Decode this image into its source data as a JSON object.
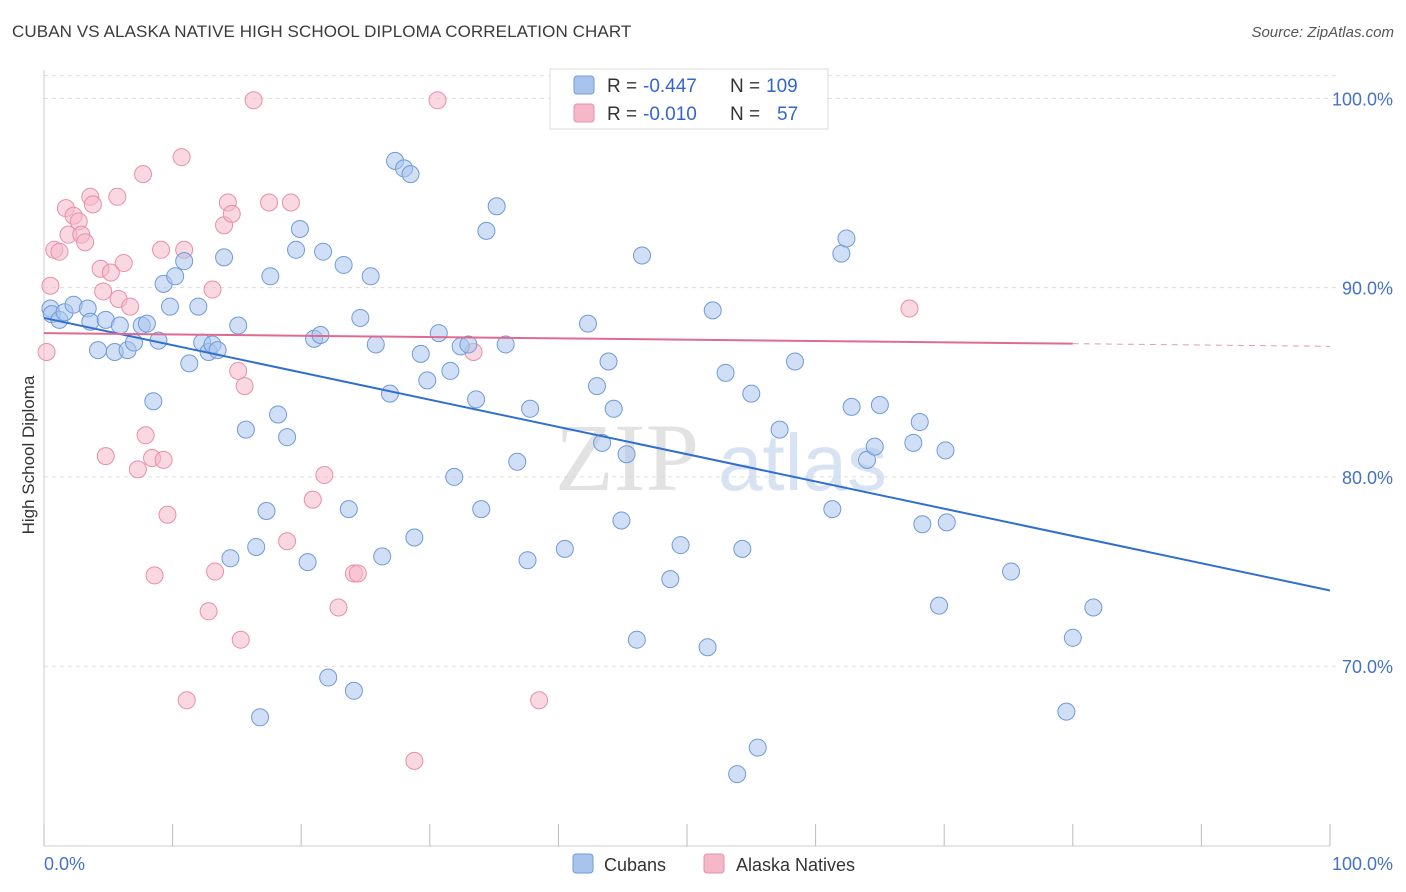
{
  "title": "CUBAN VS ALASKA NATIVE HIGH SCHOOL DIPLOMA CORRELATION CHART",
  "source": "Source: ZipAtlas.com",
  "watermark": {
    "zip": "ZIP",
    "atlas": "atlas"
  },
  "colors": {
    "cubans_fill": "#a9c4ec",
    "cubans_stroke": "#6f9bd8",
    "cubans_line": "#2f6fcf",
    "alaska_fill": "#f5b8c9",
    "alaska_stroke": "#e88fa8",
    "alaska_line": "#e06b92",
    "grid": "#dddddd",
    "tick_text": "#4472c4"
  },
  "legend": {
    "rows": [
      {
        "r_label": "R =",
        "r_value": "-0.447",
        "n_label": "N =",
        "n_value": "109"
      },
      {
        "r_label": "R =",
        "r_value": "-0.010",
        "n_label": "N =",
        "n_value": "57"
      }
    ]
  },
  "bottom_legend": [
    "Cubans",
    "Alaska Natives"
  ],
  "chart_data": {
    "type": "scatter",
    "title": "CUBAN VS ALASKA NATIVE HIGH SCHOOL DIPLOMA CORRELATION CHART",
    "xlabel": "",
    "ylabel": "High School Diploma",
    "xlim": [
      0,
      100
    ],
    "ylim": [
      60.5,
      101.5
    ],
    "x_tick_labels": [
      "0.0%",
      "100.0%"
    ],
    "y_ticks": [
      70,
      80,
      90,
      100
    ],
    "y_tick_labels": [
      "70.0%",
      "80.0%",
      "90.0%",
      "100.0%"
    ],
    "grid": true,
    "legend_position": "top-center",
    "series": [
      {
        "name": "Cubans",
        "r": -0.447,
        "n": 109,
        "trend": {
          "x": [
            0,
            100
          ],
          "y": [
            88.4,
            74.0
          ],
          "dashed_from": null
        },
        "points": [
          [
            0.5,
            88.9
          ],
          [
            0.6,
            88.6
          ],
          [
            1.2,
            88.3
          ],
          [
            1.6,
            88.7
          ],
          [
            2.3,
            89.1
          ],
          [
            3.4,
            88.9
          ],
          [
            3.6,
            88.2
          ],
          [
            4.2,
            86.7
          ],
          [
            4.8,
            88.3
          ],
          [
            5.5,
            86.6
          ],
          [
            5.9,
            88.0
          ],
          [
            6.5,
            86.7
          ],
          [
            7.0,
            87.1
          ],
          [
            7.6,
            88.0
          ],
          [
            8.0,
            88.1
          ],
          [
            8.5,
            84.0
          ],
          [
            8.9,
            87.2
          ],
          [
            9.3,
            90.2
          ],
          [
            9.8,
            89.0
          ],
          [
            10.2,
            90.6
          ],
          [
            10.9,
            91.4
          ],
          [
            11.3,
            86.0
          ],
          [
            12.0,
            89.0
          ],
          [
            12.3,
            87.1
          ],
          [
            12.8,
            86.6
          ],
          [
            13.1,
            87.0
          ],
          [
            13.5,
            86.7
          ],
          [
            14.0,
            91.6
          ],
          [
            14.5,
            75.7
          ],
          [
            15.1,
            88.0
          ],
          [
            15.7,
            82.5
          ],
          [
            16.5,
            76.3
          ],
          [
            16.8,
            67.3
          ],
          [
            17.3,
            78.2
          ],
          [
            17.6,
            90.6
          ],
          [
            18.2,
            83.3
          ],
          [
            18.9,
            82.1
          ],
          [
            19.6,
            92.0
          ],
          [
            19.9,
            93.1
          ],
          [
            20.5,
            75.5
          ],
          [
            21.0,
            87.3
          ],
          [
            21.5,
            87.5
          ],
          [
            21.7,
            91.9
          ],
          [
            22.1,
            69.4
          ],
          [
            23.3,
            91.2
          ],
          [
            23.7,
            78.3
          ],
          [
            24.1,
            68.7
          ],
          [
            24.6,
            88.4
          ],
          [
            25.4,
            90.6
          ],
          [
            25.8,
            87.0
          ],
          [
            26.3,
            75.8
          ],
          [
            26.9,
            84.4
          ],
          [
            27.3,
            96.7
          ],
          [
            28.0,
            96.3
          ],
          [
            28.5,
            96.0
          ],
          [
            28.8,
            76.8
          ],
          [
            29.3,
            86.5
          ],
          [
            29.8,
            85.1
          ],
          [
            30.7,
            87.6
          ],
          [
            31.6,
            85.6
          ],
          [
            31.9,
            80.0
          ],
          [
            32.4,
            86.9
          ],
          [
            33.0,
            87.0
          ],
          [
            33.6,
            84.1
          ],
          [
            34.0,
            78.3
          ],
          [
            34.4,
            93.0
          ],
          [
            35.2,
            94.3
          ],
          [
            35.9,
            87.0
          ],
          [
            36.8,
            80.8
          ],
          [
            37.6,
            75.6
          ],
          [
            37.8,
            83.6
          ],
          [
            40.5,
            76.2
          ],
          [
            42.3,
            88.1
          ],
          [
            43.0,
            84.8
          ],
          [
            43.4,
            81.8
          ],
          [
            43.9,
            86.1
          ],
          [
            44.3,
            83.6
          ],
          [
            44.9,
            77.7
          ],
          [
            45.3,
            81.2
          ],
          [
            46.1,
            71.4
          ],
          [
            46.5,
            91.7
          ],
          [
            48.7,
            74.6
          ],
          [
            49.5,
            76.4
          ],
          [
            51.6,
            71.0
          ],
          [
            52.0,
            88.8
          ],
          [
            53.0,
            85.5
          ],
          [
            53.9,
            64.3
          ],
          [
            54.3,
            76.2
          ],
          [
            55.0,
            84.4
          ],
          [
            55.5,
            65.7
          ],
          [
            57.2,
            82.5
          ],
          [
            58.4,
            86.1
          ],
          [
            61.3,
            78.3
          ],
          [
            62.0,
            91.8
          ],
          [
            62.4,
            92.6
          ],
          [
            62.8,
            83.7
          ],
          [
            64.0,
            80.9
          ],
          [
            64.6,
            81.6
          ],
          [
            65.0,
            83.8
          ],
          [
            67.6,
            81.8
          ],
          [
            68.1,
            82.9
          ],
          [
            68.3,
            77.5
          ],
          [
            69.6,
            73.2
          ],
          [
            70.1,
            81.4
          ],
          [
            70.2,
            77.6
          ],
          [
            75.2,
            75.0
          ],
          [
            79.5,
            67.6
          ],
          [
            80.0,
            71.5
          ],
          [
            81.6,
            73.1
          ]
        ]
      },
      {
        "name": "Alaska Natives",
        "r": -0.01,
        "n": 57,
        "trend": {
          "x": [
            0,
            100
          ],
          "y": [
            87.6,
            86.9
          ],
          "dashed_from": 80
        },
        "points": [
          [
            0.2,
            86.6
          ],
          [
            0.5,
            90.1
          ],
          [
            0.8,
            92.0
          ],
          [
            1.2,
            91.9
          ],
          [
            1.7,
            94.2
          ],
          [
            1.9,
            92.8
          ],
          [
            2.3,
            93.8
          ],
          [
            2.7,
            93.5
          ],
          [
            2.9,
            92.8
          ],
          [
            3.2,
            92.4
          ],
          [
            3.6,
            94.8
          ],
          [
            3.8,
            94.4
          ],
          [
            4.4,
            91.0
          ],
          [
            4.6,
            89.8
          ],
          [
            4.8,
            81.1
          ],
          [
            5.2,
            90.8
          ],
          [
            5.7,
            94.8
          ],
          [
            5.8,
            89.4
          ],
          [
            6.2,
            91.3
          ],
          [
            6.7,
            89.0
          ],
          [
            7.3,
            80.4
          ],
          [
            7.7,
            96.0
          ],
          [
            7.9,
            82.2
          ],
          [
            8.4,
            81.0
          ],
          [
            8.6,
            74.8
          ],
          [
            9.1,
            92.0
          ],
          [
            9.3,
            80.9
          ],
          [
            9.6,
            78.0
          ],
          [
            10.7,
            96.9
          ],
          [
            10.9,
            92.0
          ],
          [
            11.1,
            68.2
          ],
          [
            12.8,
            72.9
          ],
          [
            13.1,
            89.9
          ],
          [
            13.3,
            75.0
          ],
          [
            14.0,
            93.3
          ],
          [
            14.3,
            94.5
          ],
          [
            14.6,
            93.9
          ],
          [
            15.1,
            85.6
          ],
          [
            15.3,
            71.4
          ],
          [
            15.6,
            84.8
          ],
          [
            16.3,
            99.9
          ],
          [
            17.5,
            94.5
          ],
          [
            18.9,
            76.6
          ],
          [
            19.2,
            94.5
          ],
          [
            20.9,
            78.8
          ],
          [
            21.8,
            80.1
          ],
          [
            22.9,
            73.1
          ],
          [
            24.1,
            74.9
          ],
          [
            24.4,
            74.9
          ],
          [
            28.8,
            65.0
          ],
          [
            30.6,
            99.9
          ],
          [
            33.4,
            86.6
          ],
          [
            38.5,
            68.2
          ],
          [
            40.4,
            100.3
          ],
          [
            41.7,
            100.3
          ],
          [
            46.2,
            100.2
          ],
          [
            67.3,
            88.9
          ]
        ]
      }
    ]
  }
}
